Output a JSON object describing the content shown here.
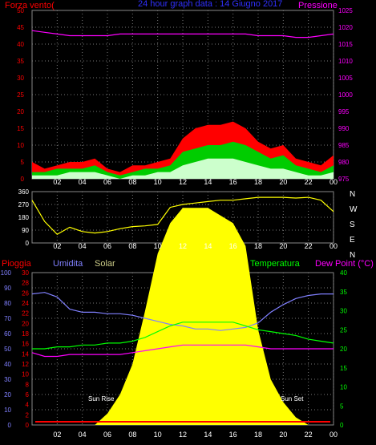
{
  "header": {
    "left_title": "Forza vento(",
    "center_title": "24 hour graph data : 14 Giugno 2017",
    "right_title": "Pressione",
    "colors": {
      "left": "#ff0000",
      "center": "#3030ff",
      "right": "#ff00ff"
    }
  },
  "x_ticks": [
    "02",
    "04",
    "06",
    "08",
    "10",
    "12",
    "14",
    "16",
    "18",
    "20",
    "22",
    "00"
  ],
  "chart_data": [
    {
      "type": "line",
      "name": "wind-pressure",
      "left_axis": {
        "ticks": [
          "0",
          "5",
          "10",
          "15",
          "20",
          "25",
          "30",
          "35",
          "40",
          "45",
          "50"
        ],
        "range": [
          0,
          50
        ],
        "color": "#ff0000"
      },
      "right_axis": {
        "ticks": [
          "975",
          "980",
          "985",
          "990",
          "995",
          "1000",
          "1005",
          "1010",
          "1015",
          "1020",
          "1025"
        ],
        "range": [
          975,
          1025
        ],
        "color": "#ff00ff"
      },
      "hours": [
        0,
        1,
        2,
        3,
        4,
        5,
        6,
        7,
        8,
        9,
        10,
        11,
        12,
        13,
        14,
        15,
        16,
        17,
        18,
        19,
        20,
        21,
        22,
        23,
        24
      ],
      "series": [
        {
          "color": "#ff0000",
          "values": [
            5,
            3,
            4,
            5,
            5,
            6,
            3,
            2,
            4,
            4,
            5,
            6,
            12,
            15,
            16,
            16,
            17,
            15,
            11,
            9,
            10,
            6,
            5,
            4,
            7
          ]
        },
        {
          "color": "#00cc00",
          "values": [
            2,
            2,
            3,
            3,
            3,
            4,
            2,
            1,
            2,
            3,
            3,
            4,
            8,
            9,
            10,
            10,
            11,
            10,
            8,
            6,
            7,
            4,
            3,
            2,
            4
          ]
        },
        {
          "color": "#ccffcc",
          "values": [
            1,
            1,
            1,
            2,
            2,
            2,
            1,
            0,
            1,
            1,
            2,
            2,
            4,
            5,
            6,
            6,
            6,
            5,
            4,
            3,
            3,
            2,
            1,
            1,
            2
          ]
        },
        {
          "color": "#ff00ff",
          "axis": "right",
          "values": [
            1019,
            1018.5,
            1018,
            1017.5,
            1017.5,
            1017.5,
            1017.5,
            1018,
            1018,
            1018,
            1018,
            1018,
            1018,
            1018,
            1018,
            1018,
            1018,
            1018,
            1017.5,
            1017.5,
            1017.5,
            1017,
            1017,
            1017.5,
            1018
          ]
        }
      ]
    },
    {
      "type": "line",
      "name": "wind-direction",
      "left_axis": {
        "ticks": [
          "0",
          "90",
          "180",
          "270",
          "360"
        ],
        "range": [
          0,
          360
        ],
        "color": "#ffffff"
      },
      "right_labels": [
        "N",
        "W",
        "S",
        "E",
        "N"
      ],
      "hours": [
        0,
        1,
        2,
        3,
        4,
        5,
        6,
        7,
        8,
        9,
        10,
        11,
        12,
        13,
        14,
        15,
        16,
        17,
        18,
        19,
        20,
        21,
        22,
        23,
        24
      ],
      "series": [
        {
          "color": "#ffff00",
          "values": [
            300,
            150,
            60,
            110,
            80,
            70,
            80,
            100,
            115,
            120,
            130,
            250,
            270,
            280,
            290,
            300,
            300,
            310,
            320,
            320,
            320,
            315,
            320,
            300,
            220
          ]
        }
      ]
    },
    {
      "type": "area",
      "name": "humidity-temperature-solar",
      "header": {
        "pioggia": "Pioggia",
        "umidita": "Umidita",
        "solar": "Solar",
        "temperatura": "Temperatura",
        "dew_point": "Dew Point (°C)"
      },
      "header_colors": {
        "pioggia": "#ff0000",
        "umidita": "#8080ff",
        "solar": "#cccc88",
        "temperatura": "#00ff00",
        "dew_point": "#ff00ff"
      },
      "axis_humidity": {
        "ticks": [
          "0",
          "10",
          "20",
          "30",
          "40",
          "50",
          "60",
          "70",
          "80",
          "90",
          "100"
        ],
        "range": [
          0,
          100
        ],
        "color": "#8080ff"
      },
      "axis_rain": {
        "ticks": [
          "0",
          "2",
          "4",
          "6",
          "8",
          "10",
          "12",
          "14",
          "16",
          "18",
          "20",
          "22",
          "24",
          "26",
          "28",
          "30"
        ],
        "range": [
          0,
          30
        ],
        "color": "#ff0000"
      },
      "axis_temp": {
        "ticks": [
          "0",
          "5",
          "10",
          "15",
          "20",
          "25",
          "30",
          "35",
          "40"
        ],
        "range": [
          0,
          40
        ],
        "color": "#00ff00"
      },
      "annotations": [
        "Sun Rise",
        "Sun Set"
      ],
      "hours": [
        0,
        1,
        2,
        3,
        4,
        5,
        6,
        7,
        8,
        9,
        10,
        11,
        12,
        13,
        14,
        15,
        16,
        17,
        18,
        19,
        20,
        21,
        22,
        23,
        24
      ],
      "series": [
        {
          "name": "Umidita",
          "color": "#8080ff",
          "values": [
            86,
            87,
            84,
            76,
            74,
            74,
            73,
            73,
            72,
            70,
            68,
            66,
            65,
            63,
            63,
            62,
            63,
            64,
            67,
            74,
            79,
            83,
            85,
            86,
            86
          ]
        },
        {
          "name": "Temperatura",
          "color": "#00ff00",
          "values": [
            20,
            20,
            20.5,
            20.5,
            21,
            21,
            21.5,
            21.5,
            22,
            23,
            24.5,
            26,
            27,
            27,
            27,
            27,
            27,
            26,
            25,
            24.5,
            24,
            23.5,
            22.5,
            22,
            21.5
          ]
        },
        {
          "name": "Dew Point",
          "color": "#ff00ff",
          "values": [
            19,
            18,
            18,
            18.5,
            18.5,
            18.5,
            18.5,
            18.5,
            19,
            19.5,
            20,
            20.5,
            21,
            21,
            21,
            21,
            21,
            21,
            20.5,
            20,
            20,
            20,
            20,
            20,
            20
          ]
        },
        {
          "name": "Solar",
          "color": "#ffff00",
          "values": [
            0,
            0,
            0,
            0,
            0,
            0,
            3,
            8,
            16,
            30,
            45,
            53,
            57,
            57,
            57,
            55,
            53,
            47,
            25,
            12,
            6,
            2,
            0,
            0,
            0
          ]
        }
      ]
    }
  ]
}
